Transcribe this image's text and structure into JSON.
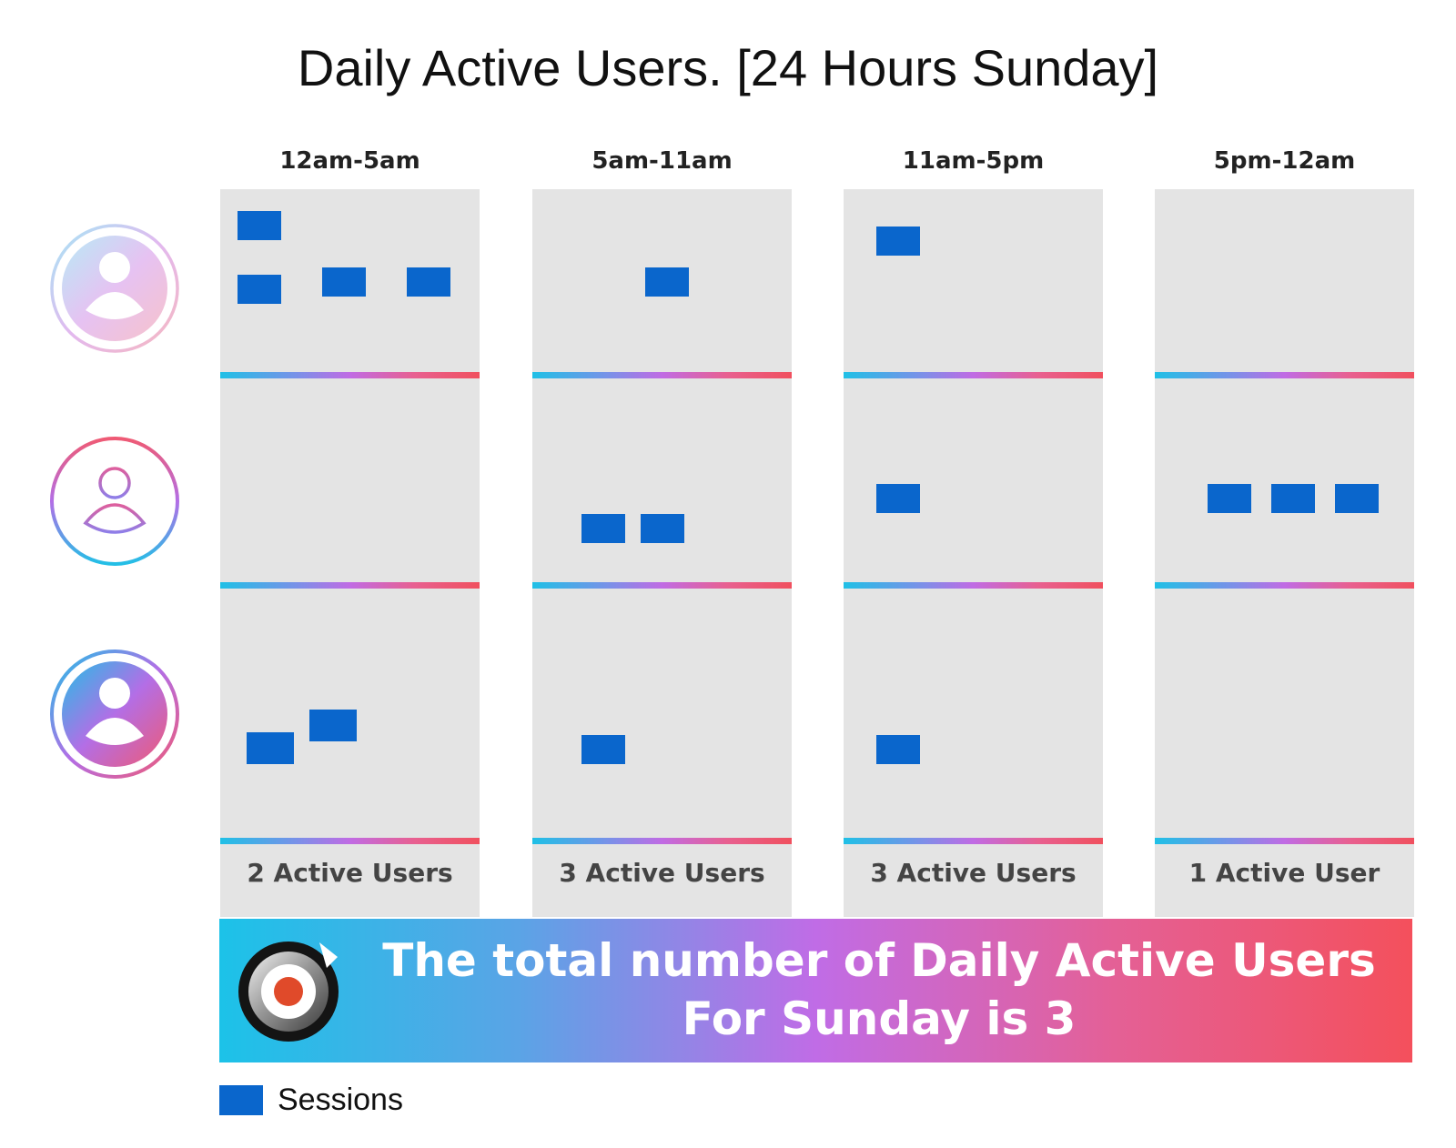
{
  "title": "Daily Active Users. [24 Hours Sunday]",
  "columns": [
    {
      "label": "12am-5am",
      "summary": "2 Active Users"
    },
    {
      "label": "5am-11am",
      "summary": "3 Active Users"
    },
    {
      "label": "11am-5pm",
      "summary": "3 Active Users"
    },
    {
      "label": "5pm-12am",
      "summary": "1 Active User"
    }
  ],
  "users": [
    {
      "icon": "user-avatar-light-gradient-icon"
    },
    {
      "icon": "user-avatar-outline-icon"
    },
    {
      "icon": "user-avatar-filled-gradient-icon"
    }
  ],
  "sessions_per_cell": [
    [
      4,
      0,
      2
    ],
    [
      1,
      2,
      1
    ],
    [
      1,
      1,
      1
    ],
    [
      0,
      3,
      0
    ]
  ],
  "banner": {
    "text": "The total number of Daily Active Users For Sunday is 3",
    "logo_icon": "target-logo-icon"
  },
  "legend": {
    "label": "Sessions"
  },
  "colors": {
    "session": "#0a66cc",
    "panel": "#e4e4e4",
    "gradient_start": "#1fc0e6",
    "gradient_mid": "#c06be4",
    "gradient_end": "#f0505e"
  }
}
